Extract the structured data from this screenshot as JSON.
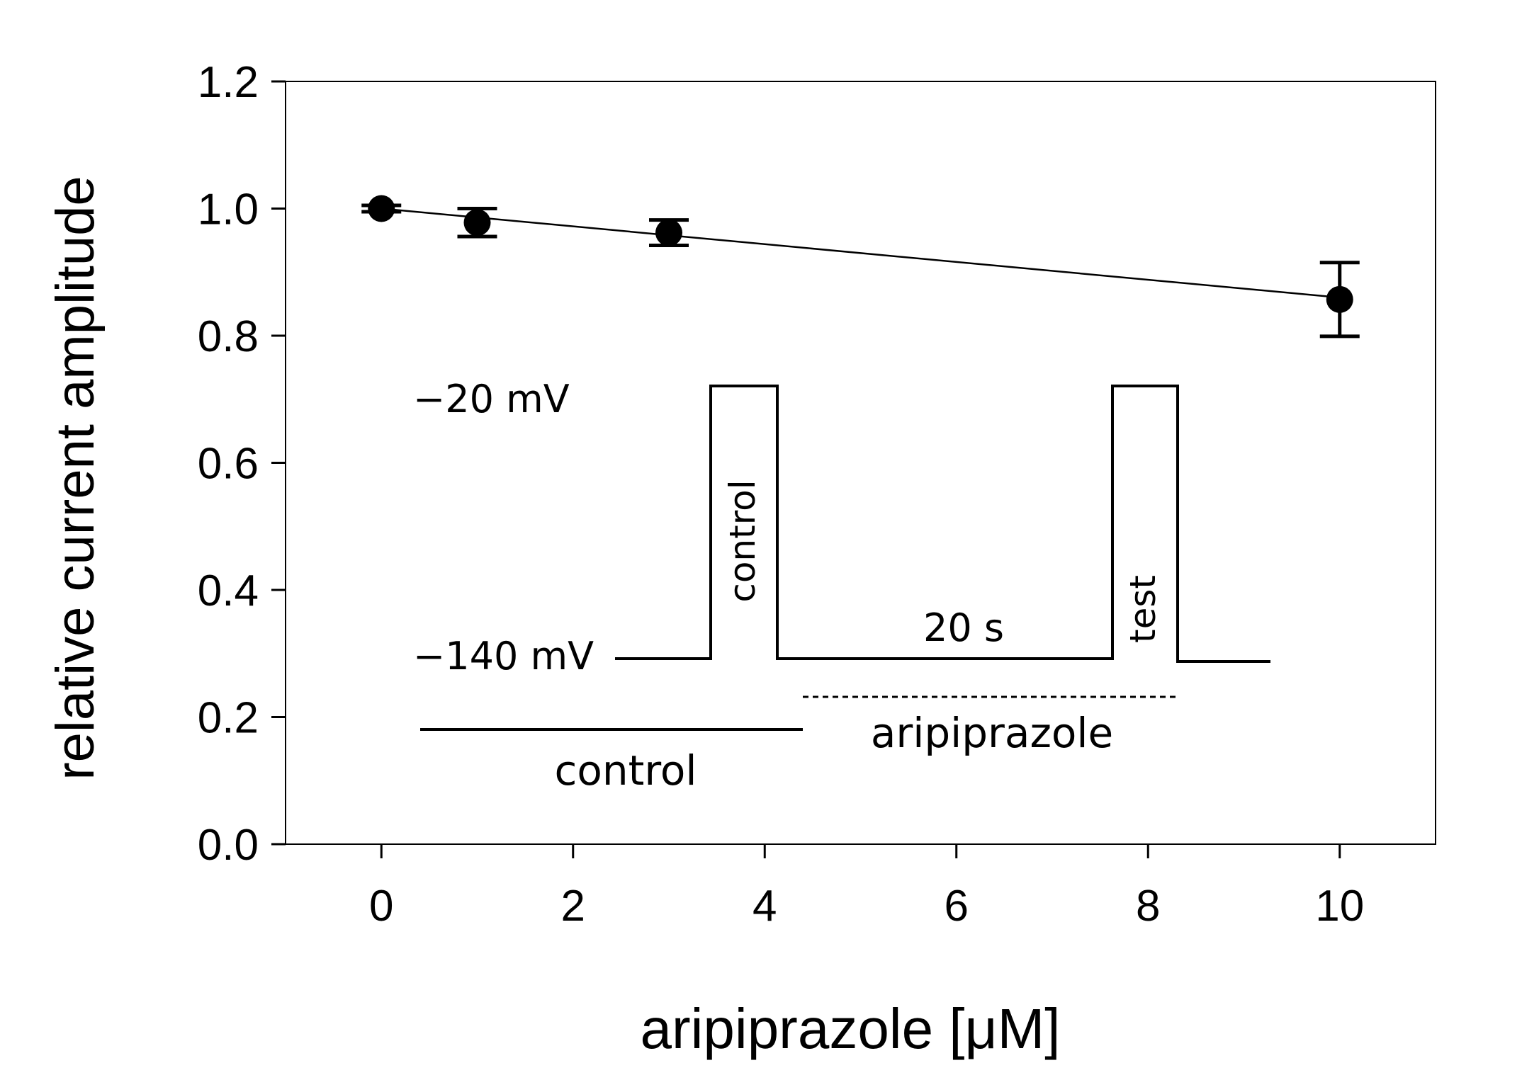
{
  "chart_data": {
    "type": "scatter",
    "xlabel": "aripiprazole [μM]",
    "ylabel": "relative current amplitude",
    "xlim": [
      -1,
      11
    ],
    "ylim": [
      0,
      1.2
    ],
    "x_ticks": [
      "0",
      "2",
      "4",
      "6",
      "8",
      "10"
    ],
    "y_ticks": [
      "0.0",
      "0.2",
      "0.4",
      "0.6",
      "0.8",
      "1.0",
      "1.2"
    ],
    "grid": false,
    "series": [
      {
        "points": [
          {
            "x": 0,
            "y": 1.0,
            "err": 0.005
          },
          {
            "x": 1,
            "y": 0.978,
            "err": 0.022
          },
          {
            "x": 3,
            "y": 0.962,
            "err": 0.02
          },
          {
            "x": 10,
            "y": 0.857,
            "err": 0.058
          }
        ],
        "fit_line": {
          "x": [
            0,
            10
          ],
          "y": [
            1.0,
            0.86
          ]
        }
      }
    ],
    "inset": {
      "level_high": "−20 mV",
      "level_low": "−140 mV",
      "pulse1": "control",
      "pulse2": "test",
      "interval": "20 s",
      "bar_control": "control",
      "bar_drug": "aripiprazole"
    }
  }
}
